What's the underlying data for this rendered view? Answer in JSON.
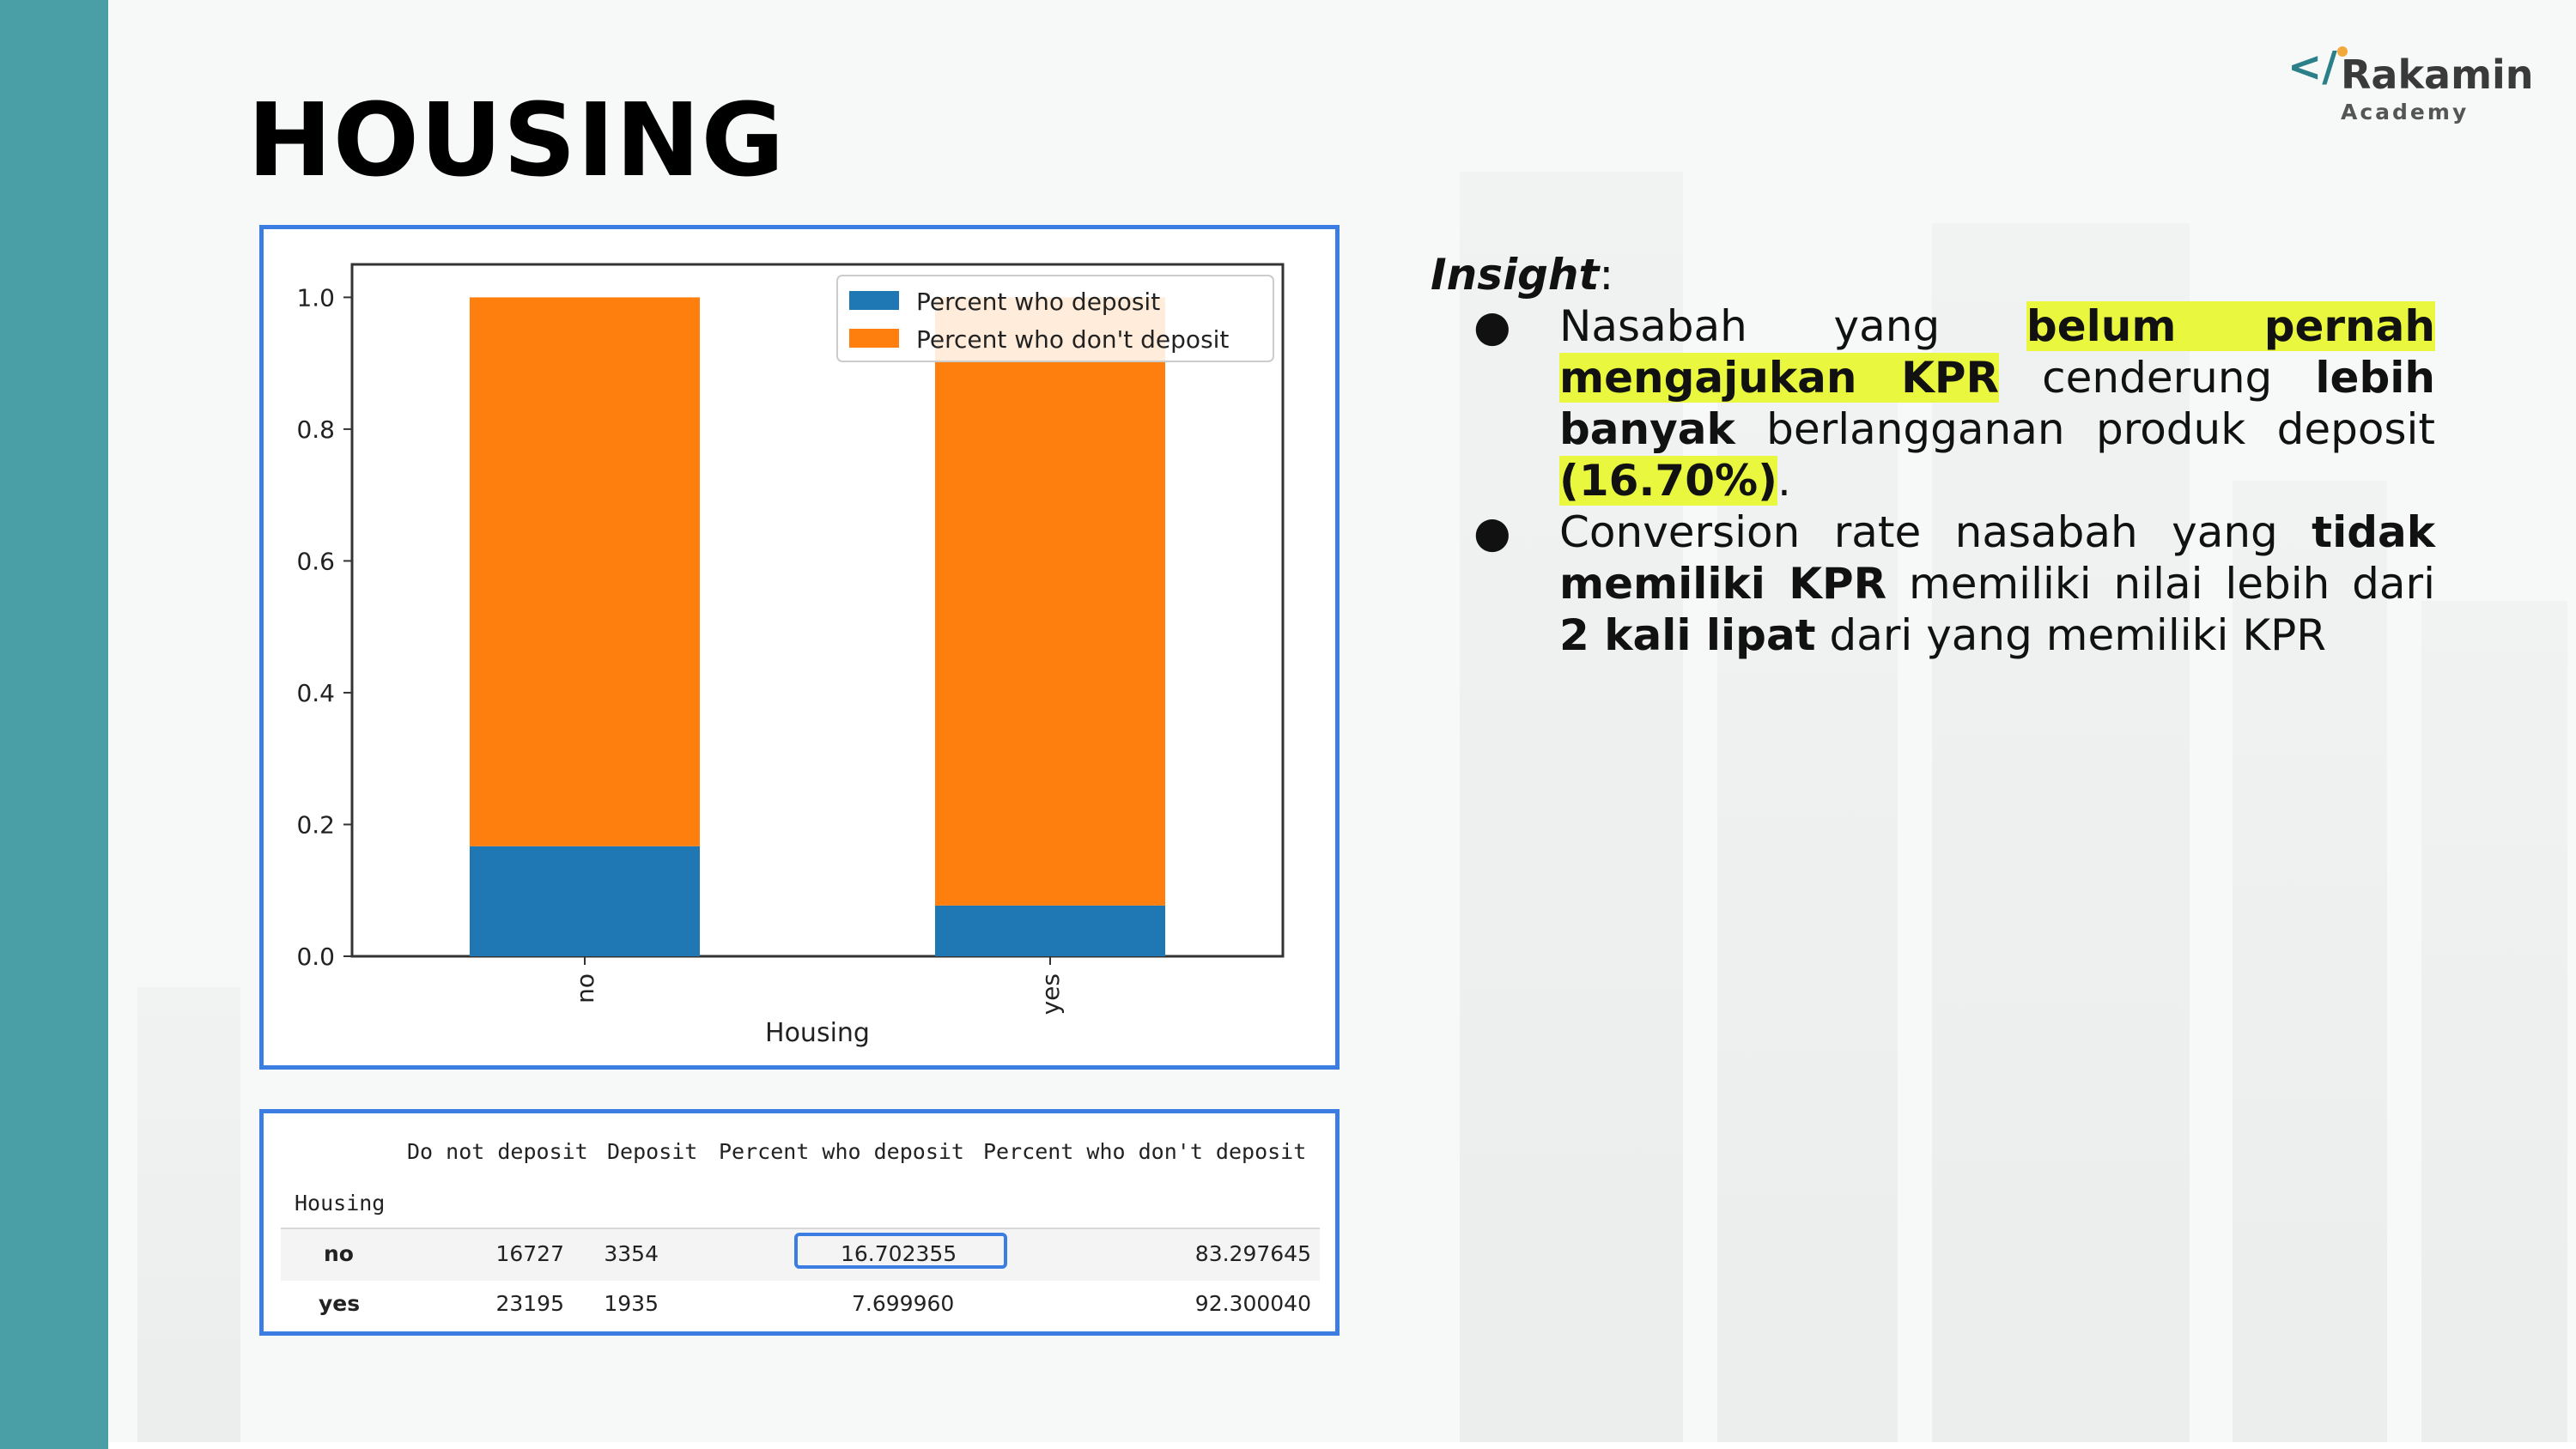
{
  "slide": {
    "title": "HOUSING",
    "colors": {
      "sidebar": "#4a9ea5",
      "frame_border": "#3b7de0",
      "highlight": "#e9f73e"
    }
  },
  "logo": {
    "mark": "</",
    "name": "Rakamin",
    "sub": "Academy"
  },
  "chart_data": {
    "type": "bar",
    "stacked": true,
    "categories": [
      "no",
      "yes"
    ],
    "series": [
      {
        "name": "Percent who deposit",
        "values": [
          0.167,
          0.077
        ],
        "color": "#1f77b4"
      },
      {
        "name": "Percent who don't deposit",
        "values": [
          0.833,
          0.923
        ],
        "color": "#ff7f0e"
      }
    ],
    "xlabel": "Housing",
    "ylabel": "",
    "ylim": [
      0,
      1.05
    ],
    "yticks": [
      "0.0",
      "0.2",
      "0.4",
      "0.6",
      "0.8",
      "1.0"
    ],
    "legend": "top-right",
    "grid": false
  },
  "table": {
    "columns": [
      "Do not deposit",
      "Deposit",
      "Percent who deposit",
      "Percent who don't deposit"
    ],
    "index_name": "Housing",
    "rows": [
      {
        "label": "no",
        "values": [
          "16727",
          "3354",
          "16.702355",
          "83.297645"
        ]
      },
      {
        "label": "yes",
        "values": [
          "23195",
          "1935",
          "7.699960",
          "92.300040"
        ]
      }
    ]
  },
  "insight": {
    "title": "Insight",
    "title_suffix": ":",
    "bullet": "●",
    "b1": {
      "t1": "Nasabah yang ",
      "h1": "belum pernah",
      "t2": " ",
      "h2": "mengajukan KPR",
      "t3": " cenderung ",
      "b1": "lebih banyak",
      "t4": " berlangganan produk deposit ",
      "h3": "(16.70%)",
      "t5": "."
    },
    "b2": {
      "t1": "Conversion rate nasabah yang ",
      "b1": "tidak memiliki KPR",
      "t2": " memiliki nilai lebih dari ",
      "b2": "2 kali lipat",
      "t3": " dari yang memiliki KPR"
    }
  }
}
